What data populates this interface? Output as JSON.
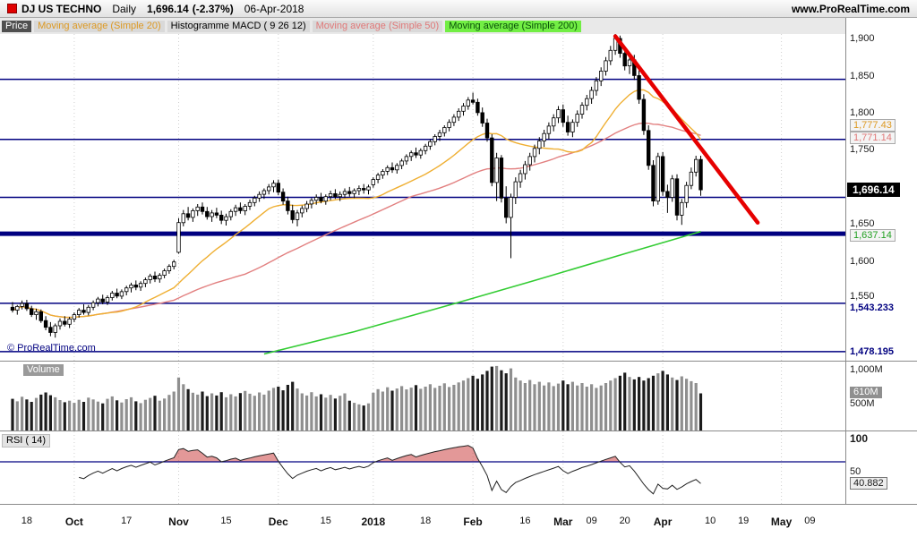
{
  "header": {
    "symbol": "DJ US TECHNO",
    "timeframe": "Daily",
    "last_price": "1,696.14",
    "change": "(-2.37%)",
    "date": "06-Apr-2018",
    "website": "www.ProRealTime.com"
  },
  "legend": {
    "price": "Price",
    "ma20": "Moving average (Simple 20)",
    "macd": "Histogramme MACD ( 9 26 12)",
    "ma50": "Moving average (Simple 50)",
    "ma200": "Moving average (Simple 200)"
  },
  "copyright": "© ProRealTime.com",
  "colors": {
    "navy": "#000080",
    "trendline": "#e60000",
    "ma20": "#efaf32",
    "ma50": "#e28080",
    "ma200": "#33cc33",
    "up_candle": "#ffffff",
    "down_candle": "#000000",
    "up_volume": "#8f8f8f",
    "down_volume": "#1c1c1c"
  },
  "xaxis": {
    "labels": [
      {
        "text": "18",
        "index": 3
      },
      {
        "text": "Oct",
        "index": 13,
        "bold": true
      },
      {
        "text": "17",
        "index": 24
      },
      {
        "text": "Nov",
        "index": 35,
        "bold": true
      },
      {
        "text": "15",
        "index": 45
      },
      {
        "text": "Dec",
        "index": 56,
        "bold": true
      },
      {
        "text": "15",
        "index": 66
      },
      {
        "text": "2018",
        "index": 76,
        "bold": true
      },
      {
        "text": "18",
        "index": 87
      },
      {
        "text": "Feb",
        "index": 97,
        "bold": true
      },
      {
        "text": "16",
        "index": 108
      },
      {
        "text": "Mar",
        "index": 116,
        "bold": true
      },
      {
        "text": "09",
        "index": 122
      },
      {
        "text": "20",
        "index": 129
      },
      {
        "text": "Apr",
        "index": 137,
        "bold": true
      },
      {
        "text": "10",
        "index": 147
      },
      {
        "text": "19",
        "index": 154
      },
      {
        "text": "May",
        "index": 162,
        "bold": true
      },
      {
        "text": "09",
        "index": 168
      }
    ]
  },
  "chart_data": [
    {
      "type": "candlestick",
      "title": "DJ US TECHNO Daily",
      "ylim": [
        1466,
        1906
      ],
      "ohlc": [
        [
          1538,
          1545,
          1531,
          1534
        ],
        [
          1534,
          1541,
          1528,
          1539
        ],
        [
          1539,
          1547,
          1535,
          1543
        ],
        [
          1543,
          1548,
          1533,
          1536
        ],
        [
          1536,
          1540,
          1525,
          1528
        ],
        [
          1528,
          1536,
          1521,
          1532
        ],
        [
          1532,
          1535,
          1517,
          1520
        ],
        [
          1520,
          1526,
          1507,
          1511
        ],
        [
          1511,
          1518,
          1499,
          1504
        ],
        [
          1504,
          1516,
          1497,
          1513
        ],
        [
          1513,
          1523,
          1508,
          1519
        ],
        [
          1519,
          1526,
          1512,
          1515
        ],
        [
          1515,
          1525,
          1510,
          1522
        ],
        [
          1522,
          1531,
          1518,
          1528
        ],
        [
          1528,
          1537,
          1524,
          1534
        ],
        [
          1534,
          1542,
          1528,
          1531
        ],
        [
          1531,
          1541,
          1527,
          1538
        ],
        [
          1538,
          1547,
          1534,
          1544
        ],
        [
          1544,
          1552,
          1539,
          1549
        ],
        [
          1549,
          1555,
          1542,
          1545
        ],
        [
          1545,
          1554,
          1541,
          1551
        ],
        [
          1551,
          1560,
          1547,
          1557
        ],
        [
          1557,
          1563,
          1550,
          1553
        ],
        [
          1553,
          1562,
          1549,
          1559
        ],
        [
          1559,
          1567,
          1554,
          1564
        ],
        [
          1564,
          1571,
          1558,
          1568
        ],
        [
          1568,
          1574,
          1561,
          1565
        ],
        [
          1565,
          1573,
          1560,
          1570
        ],
        [
          1570,
          1578,
          1565,
          1575
        ],
        [
          1575,
          1583,
          1570,
          1580
        ],
        [
          1580,
          1586,
          1572,
          1576
        ],
        [
          1576,
          1584,
          1571,
          1581
        ],
        [
          1581,
          1590,
          1577,
          1587
        ],
        [
          1587,
          1596,
          1583,
          1593
        ],
        [
          1593,
          1602,
          1589,
          1599
        ],
        [
          1612,
          1658,
          1610,
          1652
        ],
        [
          1652,
          1669,
          1647,
          1664
        ],
        [
          1664,
          1673,
          1655,
          1659
        ],
        [
          1659,
          1671,
          1653,
          1668
        ],
        [
          1668,
          1677,
          1661,
          1673
        ],
        [
          1673,
          1679,
          1663,
          1667
        ],
        [
          1667,
          1673,
          1656,
          1660
        ],
        [
          1660,
          1669,
          1653,
          1665
        ],
        [
          1665,
          1672,
          1658,
          1662
        ],
        [
          1662,
          1668,
          1650,
          1655
        ],
        [
          1655,
          1664,
          1648,
          1660
        ],
        [
          1660,
          1670,
          1655,
          1667
        ],
        [
          1667,
          1676,
          1661,
          1672
        ],
        [
          1672,
          1679,
          1664,
          1668
        ],
        [
          1668,
          1677,
          1662,
          1674
        ],
        [
          1674,
          1683,
          1669,
          1679
        ],
        [
          1679,
          1688,
          1674,
          1685
        ],
        [
          1685,
          1694,
          1680,
          1690
        ],
        [
          1690,
          1698,
          1684,
          1695
        ],
        [
          1695,
          1704,
          1690,
          1700
        ],
        [
          1700,
          1709,
          1693,
          1705
        ],
        [
          1705,
          1710,
          1689,
          1693
        ],
        [
          1693,
          1698,
          1676,
          1681
        ],
        [
          1681,
          1687,
          1663,
          1668
        ],
        [
          1668,
          1676,
          1651,
          1656
        ],
        [
          1656,
          1669,
          1647,
          1665
        ],
        [
          1665,
          1675,
          1659,
          1671
        ],
        [
          1671,
          1681,
          1666,
          1677
        ],
        [
          1677,
          1685,
          1671,
          1682
        ],
        [
          1682,
          1690,
          1676,
          1686
        ],
        [
          1686,
          1692,
          1678,
          1681
        ],
        [
          1681,
          1690,
          1676,
          1687
        ],
        [
          1687,
          1695,
          1682,
          1691
        ],
        [
          1691,
          1697,
          1684,
          1687
        ],
        [
          1687,
          1694,
          1681,
          1690
        ],
        [
          1690,
          1698,
          1685,
          1694
        ],
        [
          1694,
          1700,
          1687,
          1691
        ],
        [
          1691,
          1698,
          1685,
          1695
        ],
        [
          1695,
          1702,
          1689,
          1698
        ],
        [
          1698,
          1704,
          1691,
          1696
        ],
        [
          1696,
          1703,
          1690,
          1700
        ],
        [
          1703,
          1713,
          1699,
          1710
        ],
        [
          1710,
          1719,
          1705,
          1716
        ],
        [
          1716,
          1724,
          1711,
          1721
        ],
        [
          1721,
          1729,
          1716,
          1726
        ],
        [
          1726,
          1733,
          1719,
          1723
        ],
        [
          1723,
          1732,
          1718,
          1729
        ],
        [
          1729,
          1738,
          1724,
          1735
        ],
        [
          1735,
          1744,
          1730,
          1741
        ],
        [
          1741,
          1749,
          1735,
          1746
        ],
        [
          1746,
          1753,
          1739,
          1743
        ],
        [
          1743,
          1752,
          1738,
          1749
        ],
        [
          1749,
          1758,
          1744,
          1755
        ],
        [
          1755,
          1764,
          1750,
          1761
        ],
        [
          1761,
          1771,
          1756,
          1768
        ],
        [
          1768,
          1777,
          1762,
          1773
        ],
        [
          1773,
          1783,
          1768,
          1780
        ],
        [
          1780,
          1791,
          1775,
          1787
        ],
        [
          1787,
          1798,
          1782,
          1794
        ],
        [
          1794,
          1806,
          1789,
          1802
        ],
        [
          1802,
          1813,
          1796,
          1809
        ],
        [
          1809,
          1821,
          1804,
          1817
        ],
        [
          1817,
          1827,
          1811,
          1814
        ],
        [
          1814,
          1819,
          1796,
          1800
        ],
        [
          1800,
          1807,
          1781,
          1786
        ],
        [
          1786,
          1792,
          1761,
          1766
        ],
        [
          1766,
          1771,
          1701,
          1706
        ],
        [
          1706,
          1746,
          1681,
          1739
        ],
        [
          1739,
          1743,
          1679,
          1685
        ],
        [
          1685,
          1701,
          1651,
          1659
        ],
        [
          1659,
          1691,
          1604,
          1686
        ],
        [
          1686,
          1713,
          1677,
          1707
        ],
        [
          1707,
          1723,
          1699,
          1718
        ],
        [
          1718,
          1735,
          1710,
          1730
        ],
        [
          1730,
          1746,
          1722,
          1741
        ],
        [
          1741,
          1757,
          1733,
          1752
        ],
        [
          1752,
          1767,
          1744,
          1762
        ],
        [
          1762,
          1777,
          1754,
          1772
        ],
        [
          1772,
          1787,
          1764,
          1782
        ],
        [
          1782,
          1798,
          1775,
          1793
        ],
        [
          1793,
          1809,
          1786,
          1804
        ],
        [
          1804,
          1811,
          1781,
          1787
        ],
        [
          1787,
          1796,
          1769,
          1774
        ],
        [
          1774,
          1791,
          1767,
          1787
        ],
        [
          1787,
          1803,
          1781,
          1798
        ],
        [
          1798,
          1814,
          1792,
          1810
        ],
        [
          1810,
          1824,
          1803,
          1819
        ],
        [
          1819,
          1835,
          1812,
          1830
        ],
        [
          1830,
          1848,
          1823,
          1843
        ],
        [
          1843,
          1861,
          1836,
          1856
        ],
        [
          1856,
          1875,
          1850,
          1870
        ],
        [
          1870,
          1890,
          1864,
          1884
        ],
        [
          1884,
          1906,
          1878,
          1900
        ],
        [
          1900,
          1904,
          1874,
          1880
        ],
        [
          1880,
          1888,
          1857,
          1863
        ],
        [
          1863,
          1876,
          1852,
          1871
        ],
        [
          1871,
          1878,
          1844,
          1850
        ],
        [
          1850,
          1857,
          1812,
          1818
        ],
        [
          1818,
          1825,
          1770,
          1776
        ],
        [
          1776,
          1783,
          1723,
          1729
        ],
        [
          1729,
          1736,
          1674,
          1681
        ],
        [
          1681,
          1746,
          1676,
          1741
        ],
        [
          1741,
          1747,
          1688,
          1694
        ],
        [
          1694,
          1703,
          1665,
          1686
        ],
        [
          1686,
          1716,
          1680,
          1711
        ],
        [
          1711,
          1717,
          1655,
          1662
        ],
        [
          1662,
          1684,
          1649,
          1679
        ],
        [
          1679,
          1707,
          1672,
          1702
        ],
        [
          1702,
          1726,
          1697,
          1720
        ],
        [
          1720,
          1742,
          1714,
          1737
        ],
        [
          1737,
          1742,
          1688,
          1696.14
        ]
      ],
      "levels": [
        {
          "value": 1845
        },
        {
          "value": 1764
        },
        {
          "value": 1686
        },
        {
          "value": 1637,
          "thick": true
        },
        {
          "value": 1543.233
        },
        {
          "value": 1478.195
        }
      ],
      "trendline": {
        "from_index": 127,
        "from_price": 1903,
        "to_index": 157,
        "to_price": 1652
      },
      "ma200_points": [
        [
          53,
          1475
        ],
        [
          72,
          1505
        ],
        [
          91,
          1539
        ],
        [
          110,
          1574
        ],
        [
          129,
          1610
        ],
        [
          145,
          1640
        ]
      ],
      "month_gridline_indices": [
        13,
        35,
        56,
        76,
        97,
        116,
        137,
        162
      ],
      "price_axis": {
        "ticks": [
          {
            "text": "1,900",
            "value": 1900
          },
          {
            "text": "1,850",
            "value": 1850
          },
          {
            "text": "1,800",
            "value": 1800
          },
          {
            "text": "1,750",
            "value": 1750
          },
          {
            "text": "1,650",
            "value": 1650
          },
          {
            "text": "1,600",
            "value": 1600
          },
          {
            "text": "1,550",
            "value": 1550,
            "dy": -2
          }
        ],
        "line_labels": [
          {
            "text": "1,543.233",
            "value": 1543.233,
            "dy": 5
          },
          {
            "text": "1,478.195",
            "value": 1478.195
          }
        ],
        "ma_chips": [
          {
            "text": "1,777.43",
            "value": 1777.43,
            "color": "orange",
            "dy": -4
          },
          {
            "text": "1,771.14",
            "value": 1771.14,
            "color": "pink",
            "dy": 5
          },
          {
            "text": "1,637.14",
            "value": 1637.14,
            "color": "green",
            "dy": 3
          }
        ],
        "last_price_badge": {
          "text": "1,696.14",
          "value": 1696.14
        }
      }
    },
    {
      "type": "bar",
      "name": "Volume",
      "unit": "millions of shares",
      "values": [
        520,
        480,
        555,
        510,
        470,
        535,
        590,
        625,
        580,
        545,
        500,
        465,
        490,
        455,
        505,
        470,
        540,
        510,
        475,
        445,
        520,
        560,
        495,
        460,
        515,
        545,
        480,
        450,
        505,
        535,
        570,
        490,
        525,
        585,
        640,
        870,
        760,
        680,
        620,
        590,
        640,
        565,
        610,
        575,
        630,
        545,
        595,
        560,
        615,
        650,
        605,
        570,
        625,
        590,
        655,
        700,
        720,
        660,
        750,
        800,
        690,
        610,
        575,
        630,
        560,
        595,
        540,
        585,
        525,
        570,
        610,
        490,
        455,
        430,
        410,
        445,
        620,
        680,
        640,
        710,
        655,
        690,
        730,
        675,
        705,
        745,
        685,
        720,
        760,
        700,
        735,
        775,
        715,
        750,
        790,
        820,
        860,
        900,
        850,
        920,
        980,
        1050,
        1060,
        990,
        940,
        1020,
        870,
        820,
        780,
        830,
        760,
        800,
        740,
        790,
        730,
        770,
        820,
        760,
        800,
        740,
        780,
        720,
        760,
        700,
        740,
        780,
        820,
        860,
        900,
        950,
        880,
        840,
        880,
        820,
        860,
        900,
        940,
        980,
        920,
        870,
        830,
        890,
        850,
        810,
        780,
        610
      ],
      "axis_ticks": [
        {
          "text": "1,000M",
          "value": 1000
        },
        {
          "text": "500M",
          "value": 500,
          "dy": 4
        }
      ],
      "current_chip": {
        "text": "610M",
        "value": 610
      }
    },
    {
      "type": "line",
      "name": "RSI ( 14)",
      "period": 14,
      "source": "close",
      "overbought_level": 70,
      "axis_ticks": [
        {
          "text": "100",
          "value": 100,
          "bold": true
        },
        {
          "text": "50",
          "value": 50,
          "dy": -6
        }
      ],
      "current_chip": {
        "text": "40.882",
        "value": 40.882
      }
    }
  ]
}
